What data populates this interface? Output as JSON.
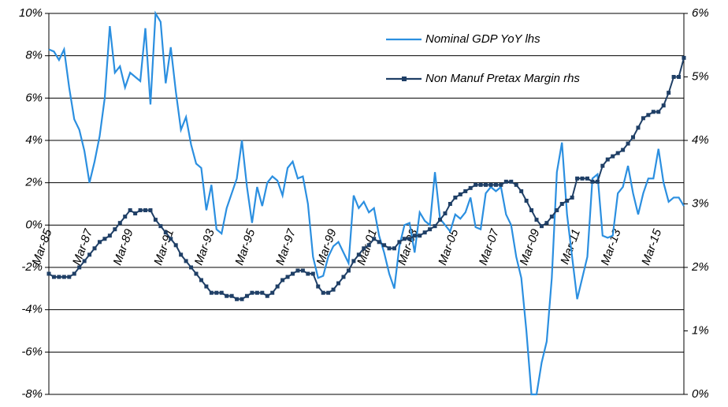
{
  "chart_data": {
    "type": "line",
    "categories": [
      "Mar-85",
      null,
      null,
      null,
      null,
      null,
      null,
      null,
      "Mar-87",
      null,
      null,
      null,
      null,
      null,
      null,
      null,
      "Mar-89",
      null,
      null,
      null,
      null,
      null,
      null,
      null,
      "Mar-91",
      null,
      null,
      null,
      null,
      null,
      null,
      null,
      "Mar-93",
      null,
      null,
      null,
      null,
      null,
      null,
      null,
      "Mar-95",
      null,
      null,
      null,
      null,
      null,
      null,
      null,
      "Mar-97",
      null,
      null,
      null,
      null,
      null,
      null,
      null,
      "Mar-99",
      null,
      null,
      null,
      null,
      null,
      null,
      null,
      "Mar-01",
      null,
      null,
      null,
      null,
      null,
      null,
      null,
      "Mar-03",
      null,
      null,
      null,
      null,
      null,
      null,
      null,
      "Mar-05",
      null,
      null,
      null,
      null,
      null,
      null,
      null,
      "Mar-07",
      null,
      null,
      null,
      null,
      null,
      null,
      null,
      "Mar-09",
      null,
      null,
      null,
      null,
      null,
      null,
      null,
      "Mar-11",
      null,
      null,
      null,
      null,
      null,
      null,
      null,
      "Mar-13",
      null,
      null,
      null,
      null,
      null,
      null,
      null,
      "Mar-15",
      null,
      null,
      null,
      null,
      null
    ],
    "series": [
      {
        "name": "Nominal GDP YoY lhs",
        "color": "#2b8fe0",
        "values": [
          8.3,
          8.2,
          7.8,
          8.3,
          6.5,
          5.0,
          4.5,
          3.5,
          2.0,
          3.0,
          4.2,
          6.0,
          9.4,
          7.2,
          7.5,
          6.5,
          7.2,
          7.0,
          6.8,
          9.3,
          5.7,
          10.0,
          9.6,
          6.7,
          8.4,
          6.3,
          4.5,
          5.1,
          3.8,
          2.9,
          2.7,
          0.7,
          1.9,
          -0.2,
          -0.4,
          0.8,
          1.5,
          2.2,
          4.0,
          1.8,
          0.1,
          1.8,
          0.9,
          2.0,
          2.3,
          2.1,
          1.4,
          2.7,
          3.0,
          2.2,
          2.3,
          1.0,
          -1.5,
          -2.5,
          -2.4,
          -1.5,
          -1.0,
          -0.8,
          -1.3,
          -1.8,
          1.4,
          0.8,
          1.1,
          0.6,
          0.8,
          -0.5,
          -1.3,
          -2.3,
          -3.0,
          -1.0,
          0.0,
          0.1,
          -1.3,
          0.6,
          0.2,
          0.0,
          2.5,
          0.3,
          0.0,
          -0.3,
          0.5,
          0.3,
          0.6,
          1.3,
          -0.1,
          -0.2,
          1.5,
          1.8,
          1.6,
          1.8,
          0.5,
          0.0,
          -1.5,
          -2.5,
          -5.0,
          -8.0,
          -8.0,
          -6.5,
          -5.5,
          -2.5,
          2.5,
          3.9,
          0.5,
          -1.5,
          -3.5,
          -2.5,
          -1.5,
          2.2,
          2.4,
          -0.5,
          -0.6,
          -0.5,
          1.5,
          1.8,
          2.8,
          1.5,
          0.5,
          1.5,
          2.2,
          2.2,
          3.6,
          2.0,
          1.1,
          1.3,
          1.3,
          0.9
        ]
      },
      {
        "name": "Non Manuf Pretax Margin rhs",
        "color": "#1f3f66",
        "axis": "y2",
        "marker": "square",
        "values": [
          1.9,
          1.85,
          1.85,
          1.85,
          1.85,
          1.9,
          2.0,
          2.1,
          2.2,
          2.3,
          2.4,
          2.45,
          2.5,
          2.6,
          2.7,
          2.8,
          2.9,
          2.85,
          2.9,
          2.9,
          2.9,
          2.75,
          2.65,
          2.55,
          2.45,
          2.35,
          2.2,
          2.1,
          2.0,
          1.9,
          1.8,
          1.7,
          1.6,
          1.6,
          1.6,
          1.55,
          1.55,
          1.5,
          1.5,
          1.55,
          1.6,
          1.6,
          1.6,
          1.55,
          1.6,
          1.7,
          1.8,
          1.85,
          1.9,
          1.95,
          1.95,
          1.9,
          1.9,
          1.7,
          1.6,
          1.6,
          1.65,
          1.75,
          1.85,
          1.95,
          2.1,
          2.2,
          2.3,
          2.35,
          2.45,
          2.4,
          2.35,
          2.3,
          2.3,
          2.4,
          2.45,
          2.45,
          2.5,
          2.5,
          2.55,
          2.6,
          2.65,
          2.75,
          2.85,
          3.0,
          3.1,
          3.15,
          3.2,
          3.25,
          3.3,
          3.3,
          3.3,
          3.3,
          3.3,
          3.3,
          3.35,
          3.35,
          3.3,
          3.2,
          3.05,
          2.9,
          2.75,
          2.65,
          2.7,
          2.8,
          2.9,
          3.0,
          3.05,
          3.1,
          3.4,
          3.4,
          3.4,
          3.35,
          3.35,
          3.6,
          3.7,
          3.75,
          3.8,
          3.85,
          3.95,
          4.05,
          4.2,
          4.35,
          4.4,
          4.45,
          4.45,
          4.55,
          4.75,
          5.0,
          5.0,
          5.3
        ]
      }
    ],
    "ylim": [
      -8,
      10
    ],
    "yticks": [
      {
        "value": -8,
        "label": "-8%"
      },
      {
        "value": -6,
        "label": "-6%"
      },
      {
        "value": -4,
        "label": "-4%"
      },
      {
        "value": -2,
        "label": "-2%"
      },
      {
        "value": 0,
        "label": "0%"
      },
      {
        "value": 2,
        "label": "2%"
      },
      {
        "value": 4,
        "label": "4%"
      },
      {
        "value": 6,
        "label": "6%"
      },
      {
        "value": 8,
        "label": "8%"
      },
      {
        "value": 10,
        "label": "10%"
      }
    ],
    "y2lim": [
      0,
      6
    ],
    "y2ticks": [
      {
        "value": 0,
        "label": "0%"
      },
      {
        "value": 1,
        "label": "1%"
      },
      {
        "value": 2,
        "label": "2%"
      },
      {
        "value": 3,
        "label": "3%"
      },
      {
        "value": 4,
        "label": "4%"
      },
      {
        "value": 5,
        "label": "5%"
      },
      {
        "value": 6,
        "label": "6%"
      }
    ],
    "grid": true,
    "legend": "upper right"
  }
}
